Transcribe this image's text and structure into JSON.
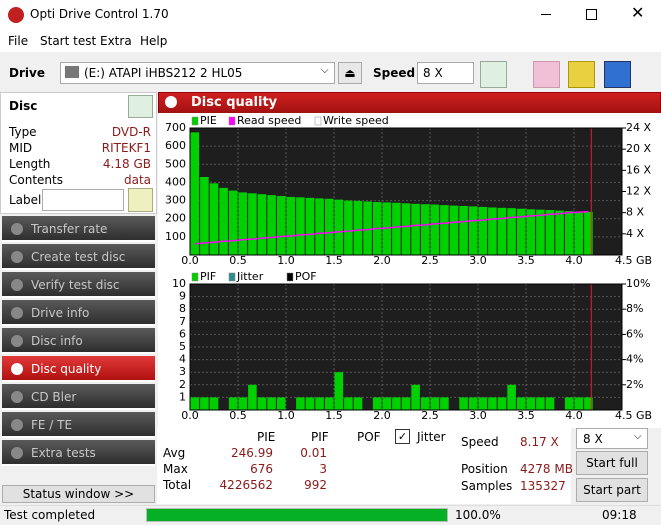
{
  "window": {
    "title": "Opti Drive Control 1.70"
  },
  "menu": [
    "File",
    "Start test",
    "Extra",
    "Help"
  ],
  "toolbar": {
    "drive_label": "Drive",
    "drive": "(E:)    ATAPI iHBS212    2 HL05",
    "speed_label": "Speed",
    "speed": "8 X"
  },
  "disc": {
    "title": "Disc",
    "rows": [
      [
        "Type",
        "DVD-R"
      ],
      [
        "MID",
        "RITEKF1"
      ],
      [
        "Length",
        "4.18 GB"
      ],
      [
        "Contents",
        "data"
      ]
    ],
    "label_caption": "Label"
  },
  "nav": [
    "Transfer rate",
    "Create test disc",
    "Verify test disc",
    "Drive info",
    "Disc info",
    "Disc quality",
    "CD Bler",
    "FE / TE",
    "Extra tests"
  ],
  "nav_selected": 5,
  "status_window": "Status window >>",
  "panel_title": "Disc quality",
  "charts": [
    {
      "type": "bar",
      "x": [
        0.05,
        0.15,
        0.25,
        0.35,
        0.45,
        0.55,
        0.65,
        0.75,
        0.85,
        0.95,
        1.05,
        1.15,
        1.25,
        1.35,
        1.45,
        1.55,
        1.65,
        1.75,
        1.85,
        1.95,
        2.05,
        2.15,
        2.25,
        2.35,
        2.45,
        2.55,
        2.65,
        2.75,
        2.85,
        2.95,
        3.05,
        3.15,
        3.25,
        3.35,
        3.45,
        3.55,
        3.65,
        3.75,
        3.85,
        3.95,
        4.05,
        4.15
      ],
      "series": [
        {
          "name": "PIE",
          "color": "#00d000",
          "values": [
            676,
            430,
            395,
            370,
            355,
            345,
            340,
            335,
            330,
            325,
            320,
            318,
            315,
            312,
            310,
            305,
            300,
            298,
            295,
            292,
            290,
            288,
            285,
            282,
            280,
            278,
            275,
            272,
            270,
            268,
            265,
            262,
            260,
            258,
            255,
            252,
            250,
            248,
            245,
            242,
            240,
            238
          ]
        },
        {
          "name": "Read speed",
          "color": "#ff00ff",
          "type": "line",
          "axis": "y2",
          "values": [
            2.1,
            2.3,
            2.4,
            2.6,
            2.7,
            2.9,
            3.0,
            3.2,
            3.3,
            3.5,
            3.6,
            3.8,
            3.9,
            4.1,
            4.2,
            4.4,
            4.5,
            4.7,
            4.8,
            5.0,
            5.1,
            5.3,
            5.4,
            5.6,
            5.7,
            5.9,
            6.0,
            6.2,
            6.3,
            6.5,
            6.6,
            6.8,
            6.9,
            7.1,
            7.2,
            7.4,
            7.5,
            7.7,
            7.8,
            8.0,
            8.1,
            8.2
          ]
        },
        {
          "name": "Write speed",
          "color": "#ffffff",
          "type": "line",
          "axis": "y2",
          "values": [
            null,
            null,
            null,
            null,
            null,
            null,
            null,
            null,
            null,
            null,
            null,
            null,
            null,
            null,
            null,
            null,
            null,
            null,
            null,
            null,
            null,
            null,
            null,
            null,
            null,
            null,
            null,
            null,
            null,
            null,
            null,
            null,
            null,
            null,
            null,
            null,
            null,
            null,
            null,
            null,
            null,
            null
          ]
        }
      ],
      "xlim": [
        0,
        4.5
      ],
      "xticks": [
        {
          "value": 0,
          "label": "0.0"
        },
        0.5,
        {
          "value": 1,
          "label": "1.0"
        },
        1.5,
        {
          "value": 2,
          "label": "2.0"
        },
        2.5,
        {
          "value": 3,
          "label": "3.0"
        },
        3.5,
        {
          "value": 4,
          "label": "4.0"
        },
        {
          "value": 4.5,
          "label": "4.5 GB"
        }
      ],
      "ylim": [
        0,
        700
      ],
      "yticks": [
        100,
        200,
        300,
        400,
        500,
        600,
        700
      ],
      "y2lim": [
        0,
        24
      ],
      "y2ticks": [
        {
          "value": 4,
          "label": "4 X"
        },
        {
          "value": 8,
          "label": "8 X"
        },
        {
          "value": 12,
          "label": "12 X"
        },
        {
          "value": 16,
          "label": "16 X"
        },
        {
          "value": 20,
          "label": "20 X"
        },
        {
          "value": 24,
          "label": "24 X"
        }
      ],
      "grid": true,
      "end_marker": 4.18
    },
    {
      "type": "bar",
      "x": [
        0.05,
        0.15,
        0.25,
        0.35,
        0.45,
        0.55,
        0.65,
        0.75,
        0.85,
        0.95,
        1.05,
        1.15,
        1.25,
        1.35,
        1.45,
        1.55,
        1.65,
        1.75,
        1.85,
        1.95,
        2.05,
        2.15,
        2.25,
        2.35,
        2.45,
        2.55,
        2.65,
        2.75,
        2.85,
        2.95,
        3.05,
        3.15,
        3.25,
        3.35,
        3.45,
        3.55,
        3.65,
        3.75,
        3.85,
        3.95,
        4.05,
        4.15
      ],
      "series": [
        {
          "name": "PIF",
          "color": "#00d000",
          "values": [
            1,
            1,
            1,
            0,
            1,
            1,
            2,
            1,
            1,
            1,
            0,
            1,
            1,
            1,
            1,
            3,
            1,
            1,
            0,
            1,
            1,
            1,
            1,
            2,
            1,
            1,
            1,
            0,
            1,
            1,
            1,
            1,
            1,
            2,
            1,
            1,
            1,
            1,
            0,
            1,
            1,
            1
          ]
        },
        {
          "name": "Jitter",
          "color": "#2f8f8f",
          "type": "line",
          "axis": "y2",
          "values": [
            null,
            null,
            null,
            null,
            null,
            null,
            null,
            null,
            null,
            null,
            null,
            null,
            null,
            null,
            null,
            null,
            null,
            null,
            null,
            null,
            null,
            null,
            null,
            null,
            null,
            null,
            null,
            null,
            null,
            null,
            null,
            null,
            null,
            null,
            null,
            null,
            null,
            null,
            null,
            null,
            null,
            null
          ]
        },
        {
          "name": "POF",
          "color": "#000000",
          "values": [
            0,
            0,
            0,
            0,
            0,
            0,
            0,
            0,
            0,
            0,
            0,
            0,
            0,
            0,
            0,
            0,
            0,
            0,
            0,
            0,
            0,
            0,
            0,
            0,
            0,
            0,
            0,
            0,
            0,
            0,
            0,
            0,
            0,
            0,
            0,
            0,
            0,
            0,
            0,
            0,
            0,
            0
          ]
        }
      ],
      "xlim": [
        0,
        4.5
      ],
      "xticks": [
        {
          "value": 0,
          "label": "0.0"
        },
        0.5,
        {
          "value": 1,
          "label": "1.0"
        },
        1.5,
        {
          "value": 2,
          "label": "2.0"
        },
        2.5,
        {
          "value": 3,
          "label": "3.0"
        },
        3.5,
        {
          "value": 4,
          "label": "4.0"
        },
        {
          "value": 4.5,
          "label": "4.5 GB"
        }
      ],
      "ylim": [
        0,
        10
      ],
      "yticks": [
        1,
        2,
        3,
        4,
        5,
        6,
        7,
        8,
        9,
        10
      ],
      "y2lim": [
        0,
        10
      ],
      "y2ticks": [
        {
          "value": 2,
          "label": "2%"
        },
        {
          "value": 4,
          "label": "4%"
        },
        {
          "value": 6,
          "label": "6%"
        },
        {
          "value": 8,
          "label": "8%"
        },
        {
          "value": 10,
          "label": "10%"
        }
      ],
      "grid": true,
      "end_marker": 4.18
    }
  ],
  "stats": {
    "headers": [
      "PIE",
      "PIF",
      "POF",
      "Jitter"
    ],
    "jitter_checked": true,
    "rows": [
      [
        "Avg",
        246.99,
        0.01
      ],
      [
        "Max",
        676,
        3
      ],
      [
        "Total",
        4226562,
        992
      ]
    ]
  },
  "speed_info": [
    [
      "Speed",
      "8.17 X"
    ],
    [
      "Position",
      "4278 MB"
    ],
    [
      "Samples",
      "135327"
    ]
  ],
  "speed_select": "8 X",
  "buttons": [
    "Start full",
    "Start part"
  ],
  "status": {
    "text": "Test completed",
    "progress": {
      "value": 100,
      "label": "100.0%"
    },
    "time": "09:18"
  }
}
